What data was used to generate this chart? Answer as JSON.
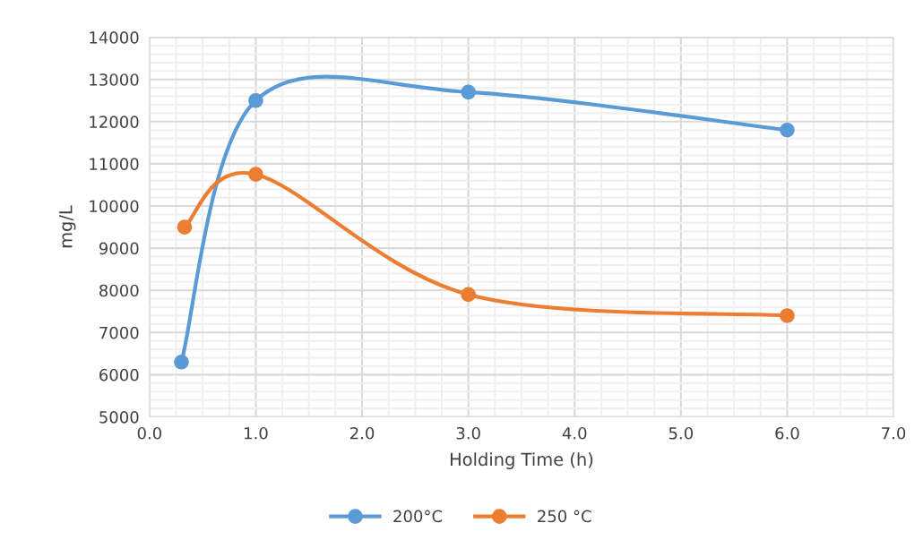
{
  "chart_data": {
    "type": "line",
    "xlabel": "Holding Time (h)",
    "ylabel": "mg/L",
    "series": [
      {
        "name": "200°C",
        "color": "#5b9bd5",
        "x": [
          0.3,
          1.0,
          3.0,
          6.0
        ],
        "values": [
          6300,
          12500,
          12700,
          11800
        ]
      },
      {
        "name": "250 °C",
        "color": "#ed7d31",
        "x": [
          0.33,
          1.0,
          3.0,
          6.0
        ],
        "values": [
          9500,
          10750,
          7900,
          7400
        ]
      }
    ],
    "xlim": [
      0,
      7
    ],
    "xticks": [
      {
        "value": 0,
        "label": "0.0"
      },
      {
        "value": 1,
        "label": "1.0"
      },
      {
        "value": 2,
        "label": "2.0"
      },
      {
        "value": 3,
        "label": "3.0"
      },
      {
        "value": 4,
        "label": "4.0"
      },
      {
        "value": 5,
        "label": "5.0"
      },
      {
        "value": 6,
        "label": "6.0"
      },
      {
        "value": 7,
        "label": "7.0"
      }
    ],
    "ylim": [
      5000,
      14000
    ],
    "yticks": [
      5000,
      6000,
      7000,
      8000,
      9000,
      10000,
      11000,
      12000,
      13000,
      14000
    ],
    "grid": true,
    "legend": "bottom",
    "marker": "circle",
    "line_style": "solid"
  }
}
